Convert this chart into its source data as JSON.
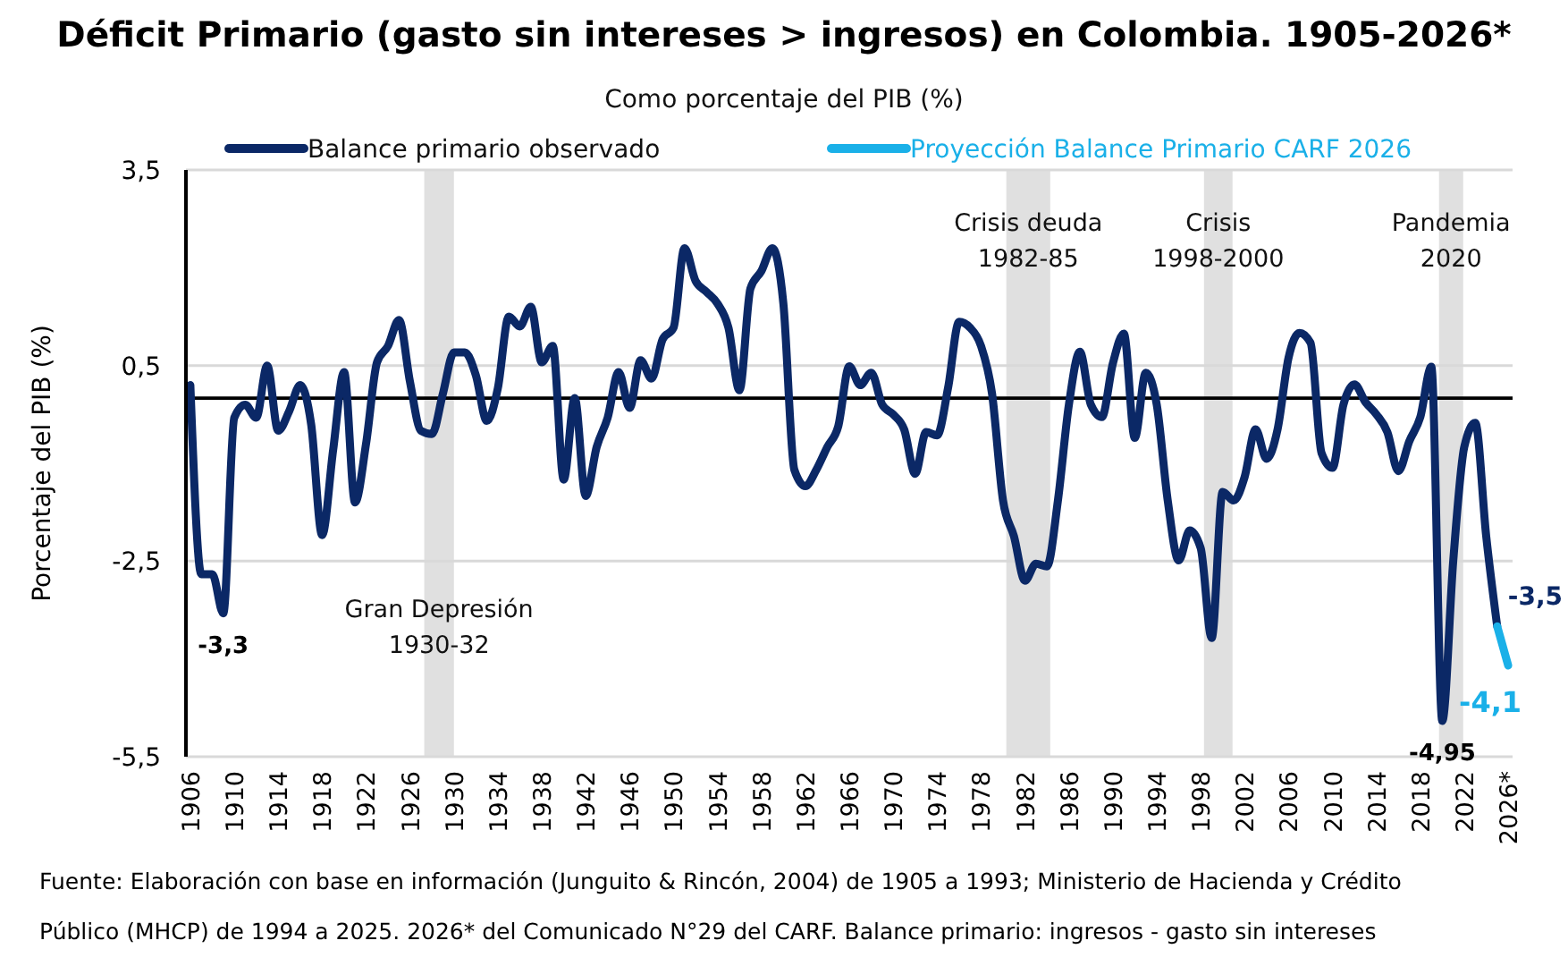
{
  "chart_data": {
    "type": "line",
    "title": "Déficit Primario (gasto sin intereses > ingresos) en Colombia. 1905-2026*",
    "subtitle": "Como porcentaje del PIB (%)",
    "ylabel": "Porcentaje del PIB (%)",
    "xlim": [
      1905.6,
      2026.4
    ],
    "ylim": [
      -5.5,
      3.5
    ],
    "yticks": [
      {
        "value": 3.5,
        "label": "3,5"
      },
      {
        "value": 0.5,
        "label": "0,5"
      },
      {
        "value": -2.5,
        "label": "-2,5"
      },
      {
        "value": -5.5,
        "label": "-5,5"
      }
    ],
    "xticks": [
      1906,
      1910,
      1914,
      1918,
      1922,
      1926,
      1930,
      1934,
      1938,
      1942,
      1946,
      1950,
      1954,
      1958,
      1962,
      1966,
      1970,
      1974,
      1978,
      1982,
      1986,
      1990,
      1994,
      1998,
      2002,
      2006,
      2010,
      2014,
      2018,
      2022,
      {
        "value": 2026,
        "label": "2026*"
      }
    ],
    "grid": "y",
    "legend": "top",
    "series": [
      {
        "name": "Balance primario observado",
        "color": "#0b2866",
        "x": [
          1906,
          1907,
          1908,
          1909,
          1910,
          1911,
          1912,
          1913,
          1914,
          1915,
          1916,
          1917,
          1918,
          1919,
          1920,
          1921,
          1922,
          1923,
          1924,
          1925,
          1926,
          1927,
          1928,
          1929,
          1930,
          1931,
          1932,
          1933,
          1934,
          1935,
          1936,
          1937,
          1938,
          1939,
          1940,
          1941,
          1942,
          1943,
          1944,
          1945,
          1946,
          1947,
          1948,
          1949,
          1950,
          1951,
          1952,
          1953,
          1954,
          1955,
          1956,
          1957,
          1958,
          1959,
          1960,
          1961,
          1962,
          1963,
          1964,
          1965,
          1966,
          1967,
          1968,
          1969,
          1970,
          1971,
          1972,
          1973,
          1974,
          1975,
          1976,
          1977,
          1978,
          1979,
          1980,
          1981,
          1982,
          1983,
          1984,
          1985,
          1986,
          1987,
          1988,
          1989,
          1990,
          1991,
          1992,
          1993,
          1994,
          1995,
          1996,
          1997,
          1998,
          1999,
          2000,
          2001,
          2002,
          2003,
          2004,
          2005,
          2006,
          2007,
          2008,
          2009,
          2010,
          2011,
          2012,
          2013,
          2014,
          2015,
          2016,
          2017,
          2018,
          2019,
          2020,
          2021,
          2022,
          2023,
          2024,
          2025
        ],
        "values": [
          0.2,
          -2.7,
          -2.7,
          -3.3,
          -0.3,
          -0.1,
          -0.3,
          0.5,
          -0.5,
          -0.2,
          0.2,
          -0.4,
          -2.1,
          -0.8,
          0.4,
          -1.6,
          -0.7,
          0.55,
          0.8,
          1.2,
          0.25,
          -0.5,
          -0.55,
          0.07,
          0.7,
          0.7,
          0.35,
          -0.35,
          0.15,
          1.25,
          1.1,
          1.4,
          0.55,
          0.8,
          -1.25,
          0.0,
          -1.5,
          -0.75,
          -0.3,
          0.4,
          -0.15,
          0.58,
          0.3,
          0.9,
          1.08,
          2.3,
          1.8,
          1.63,
          1.45,
          1.08,
          0.12,
          1.68,
          1.95,
          2.3,
          1.45,
          -1.1,
          -1.35,
          -1.1,
          -0.75,
          -0.43,
          0.49,
          0.2,
          0.39,
          -0.1,
          -0.25,
          -0.48,
          -1.16,
          -0.52,
          -0.57,
          0.16,
          1.17,
          1.08,
          0.8,
          0.07,
          -1.57,
          -2.12,
          -2.8,
          -2.54,
          -2.58,
          -1.57,
          -0.1,
          0.71,
          -0.1,
          -0.29,
          0.53,
          0.99,
          -0.61,
          0.39,
          -0.1,
          -1.57,
          -2.49,
          -2.03,
          -2.3,
          -3.68,
          -1.44,
          -1.57,
          -1.21,
          -0.48,
          -0.93,
          -0.48,
          0.62,
          1.0,
          0.85,
          -0.84,
          -1.07,
          -0.1,
          0.21,
          -0.06,
          -0.25,
          -0.52,
          -1.12,
          -0.66,
          -0.29,
          0.48,
          -4.95,
          -2.49,
          -0.75,
          -0.38,
          -2.12,
          -3.5
        ],
        "value_labels": [
          null,
          null,
          null,
          "-3,3",
          null,
          null,
          null,
          null,
          null,
          null,
          null,
          null,
          null,
          null,
          null,
          null,
          null,
          null,
          null,
          null,
          null,
          null,
          null,
          null,
          null,
          null,
          null,
          null,
          null,
          null,
          null,
          null,
          null,
          null,
          null,
          null,
          null,
          null,
          null,
          null,
          null,
          null,
          null,
          null,
          null,
          null,
          null,
          null,
          null,
          null,
          null,
          null,
          null,
          null,
          null,
          null,
          null,
          null,
          null,
          null,
          null,
          null,
          null,
          null,
          null,
          null,
          null,
          null,
          null,
          null,
          null,
          null,
          null,
          null,
          null,
          null,
          null,
          null,
          null,
          null,
          null,
          null,
          null,
          null,
          null,
          null,
          null,
          null,
          null,
          null,
          null,
          null,
          null,
          null,
          null,
          null,
          null,
          null,
          null,
          null,
          null,
          null,
          null,
          null,
          null,
          null,
          null,
          null,
          null,
          null,
          null,
          null,
          null,
          null,
          "-4,95",
          null,
          null,
          null,
          null,
          "-3,5"
        ]
      },
      {
        "name": "Proyección Balance Primario CARF 2026",
        "color": "#1ab0e8",
        "x": [
          2025,
          2026
        ],
        "values": [
          -3.5,
          -4.1
        ],
        "value_labels": [
          null,
          "-4,1"
        ]
      }
    ],
    "ref_lines": [
      {
        "axis": "y",
        "value": 0,
        "color": "#000000"
      }
    ],
    "bands": [
      {
        "axis": "x",
        "from": 1927.3,
        "to": 1930,
        "label": "Gran Depresión\n1930-32",
        "color": "#e0e0e0"
      },
      {
        "axis": "x",
        "from": 1980.3,
        "to": 1984.3,
        "label": "Crisis deuda\n1982-85",
        "color": "#e0e0e0"
      },
      {
        "axis": "x",
        "from": 1998.3,
        "to": 2000.9,
        "label": "Crisis\n1998-2000",
        "color": "#e0e0e0"
      },
      {
        "axis": "x",
        "from": 2019.7,
        "to": 2021.9,
        "label": "Pandemia\n2020",
        "color": "#e0e0e0"
      }
    ],
    "annotations": [
      "Fuente: Elaboración con base en información (Junguito & Rincón, 2004) de 1905 a 1993; Ministerio de Hacienda y Crédito",
      "Público (MHCP) de 1994 a 2025. 2026* del Comunicado  N°29 del CARF. Balance primario: ingresos - gasto sin intereses"
    ]
  }
}
